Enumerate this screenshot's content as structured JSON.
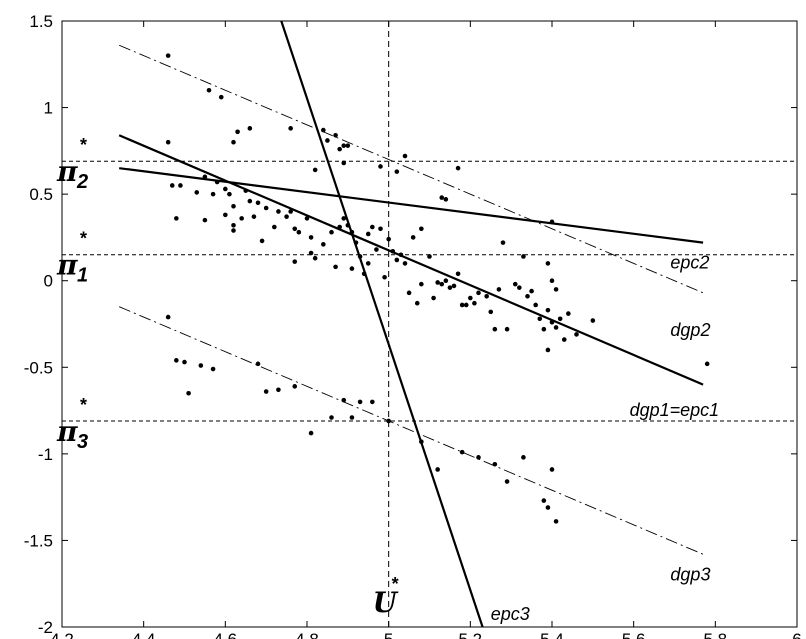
{
  "chart_data": {
    "type": "scatter",
    "title": "",
    "xlabel": "",
    "ylabel": "",
    "xlim": [
      4.2,
      6
    ],
    "ylim": [
      -2,
      1.5
    ],
    "xticks": [
      "4.2",
      "4.4",
      "4.6",
      "4.8",
      "5",
      "5.2",
      "5.4",
      "5.6",
      "5.8",
      "6"
    ],
    "yticks": [
      "1.5",
      "1",
      "0.5",
      "0",
      "-0.5",
      "-1",
      "-1.5",
      "-2"
    ],
    "grid": false,
    "reference_lines": {
      "horizontal": [
        {
          "y": 0.69,
          "symbol": "π",
          "subscript": "2",
          "superscript": "*"
        },
        {
          "y": 0.15,
          "symbol": "π",
          "subscript": "1",
          "superscript": "*"
        },
        {
          "y": -0.81,
          "symbol": "π",
          "subscript": "3",
          "superscript": "*"
        }
      ],
      "vertical": [
        {
          "x": 5.0,
          "symbol": "U",
          "superscript": "*"
        }
      ]
    },
    "lines": [
      {
        "name": "epc2",
        "style": "solid",
        "points": [
          [
            4.34,
            0.65
          ],
          [
            5.77,
            0.22
          ]
        ]
      },
      {
        "name": "dgp1=epc1",
        "style": "solid",
        "points": [
          [
            4.34,
            0.84
          ],
          [
            5.77,
            -0.6
          ]
        ]
      },
      {
        "name": "epc3",
        "style": "solid",
        "points": [
          [
            4.73,
            1.55
          ],
          [
            5.23,
            -2.0
          ]
        ]
      },
      {
        "name": "dgp2",
        "style": "dashdot",
        "points": [
          [
            4.34,
            1.36
          ],
          [
            5.77,
            -0.07
          ]
        ]
      },
      {
        "name": "dgp3",
        "style": "dashdot",
        "points": [
          [
            4.34,
            -0.15
          ],
          [
            5.77,
            -1.58
          ]
        ]
      }
    ],
    "line_labels": [
      {
        "text": "epc2",
        "x": 5.69,
        "y": 0.07
      },
      {
        "text": "dgp2",
        "x": 5.69,
        "y": -0.32
      },
      {
        "text": "dgp1=epc1",
        "x": 5.59,
        "y": -0.78
      },
      {
        "text": "dgp3",
        "x": 5.69,
        "y": -1.73
      },
      {
        "text": "epc3",
        "x": 5.25,
        "y": -1.96
      }
    ],
    "points": [
      [
        4.46,
        1.3
      ],
      [
        4.56,
        1.1
      ],
      [
        4.59,
        1.06
      ],
      [
        4.63,
        0.86
      ],
      [
        4.66,
        0.88
      ],
      [
        4.62,
        0.8
      ],
      [
        4.46,
        0.8
      ],
      [
        4.76,
        0.88
      ],
      [
        4.84,
        0.87
      ],
      [
        4.87,
        0.84
      ],
      [
        4.88,
        0.76
      ],
      [
        4.89,
        0.78
      ],
      [
        4.9,
        0.78
      ],
      [
        4.85,
        0.81
      ],
      [
        4.82,
        0.64
      ],
      [
        4.89,
        0.68
      ],
      [
        4.98,
        0.66
      ],
      [
        5.04,
        0.72
      ],
      [
        5.02,
        0.63
      ],
      [
        5.13,
        0.48
      ],
      [
        5.14,
        0.47
      ],
      [
        5.17,
        0.65
      ],
      [
        4.47,
        0.55
      ],
      [
        4.49,
        0.55
      ],
      [
        4.53,
        0.51
      ],
      [
        4.55,
        0.6
      ],
      [
        4.57,
        0.5
      ],
      [
        4.58,
        0.57
      ],
      [
        4.6,
        0.53
      ],
      [
        4.61,
        0.5
      ],
      [
        4.62,
        0.43
      ],
      [
        4.65,
        0.52
      ],
      [
        4.66,
        0.46
      ],
      [
        4.68,
        0.45
      ],
      [
        4.7,
        0.42
      ],
      [
        4.73,
        0.4
      ],
      [
        4.75,
        0.37
      ],
      [
        4.76,
        0.4
      ],
      [
        4.8,
        0.36
      ],
      [
        4.48,
        0.36
      ],
      [
        4.55,
        0.35
      ],
      [
        4.6,
        0.38
      ],
      [
        4.62,
        0.32
      ],
      [
        4.64,
        0.36
      ],
      [
        4.67,
        0.37
      ],
      [
        4.72,
        0.31
      ],
      [
        4.77,
        0.3
      ],
      [
        4.78,
        0.28
      ],
      [
        4.81,
        0.25
      ],
      [
        4.84,
        0.21
      ],
      [
        4.86,
        0.28
      ],
      [
        4.88,
        0.31
      ],
      [
        4.89,
        0.36
      ],
      [
        4.9,
        0.32
      ],
      [
        4.91,
        0.28
      ],
      [
        4.92,
        0.22
      ],
      [
        4.93,
        0.14
      ],
      [
        4.95,
        0.27
      ],
      [
        4.96,
        0.31
      ],
      [
        4.97,
        0.18
      ],
      [
        4.98,
        0.3
      ],
      [
        5.0,
        0.24
      ],
      [
        5.01,
        0.17
      ],
      [
        5.02,
        0.12
      ],
      [
        5.03,
        0.15
      ],
      [
        5.04,
        0.1
      ],
      [
        5.06,
        0.25
      ],
      [
        5.08,
        0.3
      ],
      [
        5.1,
        0.14
      ],
      [
        4.62,
        0.29
      ],
      [
        4.69,
        0.23
      ],
      [
        4.77,
        0.11
      ],
      [
        4.81,
        0.16
      ],
      [
        4.82,
        0.13
      ],
      [
        4.87,
        0.08
      ],
      [
        4.91,
        0.07
      ],
      [
        4.94,
        0.04
      ],
      [
        4.95,
        0.1
      ],
      [
        4.99,
        0.02
      ],
      [
        5.05,
        -0.07
      ],
      [
        5.07,
        -0.13
      ],
      [
        5.08,
        -0.02
      ],
      [
        5.11,
        -0.1
      ],
      [
        5.12,
        -0.01
      ],
      [
        5.13,
        -0.02
      ],
      [
        5.14,
        0.0
      ],
      [
        5.15,
        -0.04
      ],
      [
        5.16,
        -0.03
      ],
      [
        5.17,
        0.04
      ],
      [
        5.18,
        -0.14
      ],
      [
        5.19,
        -0.14
      ],
      [
        5.2,
        -0.1
      ],
      [
        5.21,
        -0.13
      ],
      [
        5.22,
        -0.07
      ],
      [
        5.24,
        -0.09
      ],
      [
        5.25,
        -0.18
      ],
      [
        5.26,
        -0.28
      ],
      [
        5.27,
        -0.05
      ],
      [
        5.28,
        0.22
      ],
      [
        5.29,
        -0.28
      ],
      [
        5.31,
        -0.02
      ],
      [
        5.32,
        -0.04
      ],
      [
        5.34,
        -0.09
      ],
      [
        5.35,
        -0.06
      ],
      [
        5.36,
        -0.14
      ],
      [
        5.37,
        -0.22
      ],
      [
        5.38,
        -0.28
      ],
      [
        5.39,
        -0.17
      ],
      [
        5.4,
        -0.24
      ],
      [
        5.41,
        -0.27
      ],
      [
        5.42,
        -0.22
      ],
      [
        5.43,
        -0.34
      ],
      [
        5.44,
        -0.19
      ],
      [
        5.46,
        -0.31
      ],
      [
        5.5,
        -0.23
      ],
      [
        5.33,
        0.14
      ],
      [
        5.4,
        0.34
      ],
      [
        5.39,
        0.1
      ],
      [
        5.4,
        0.0
      ],
      [
        5.41,
        -0.05
      ],
      [
        5.39,
        -0.4
      ],
      [
        5.78,
        -0.48
      ],
      [
        4.46,
        -0.21
      ],
      [
        4.48,
        -0.46
      ],
      [
        4.5,
        -0.47
      ],
      [
        4.51,
        -0.65
      ],
      [
        4.54,
        -0.49
      ],
      [
        4.57,
        -0.51
      ],
      [
        4.68,
        -0.48
      ],
      [
        4.7,
        -0.64
      ],
      [
        4.73,
        -0.63
      ],
      [
        4.77,
        -0.61
      ],
      [
        4.81,
        -0.88
      ],
      [
        4.86,
        -0.79
      ],
      [
        4.89,
        -0.69
      ],
      [
        4.91,
        -0.79
      ],
      [
        4.93,
        -0.7
      ],
      [
        4.96,
        -0.7
      ],
      [
        5.0,
        -0.81
      ],
      [
        5.08,
        -0.93
      ],
      [
        5.12,
        -1.09
      ],
      [
        5.18,
        -0.99
      ],
      [
        5.22,
        -1.02
      ],
      [
        5.26,
        -1.06
      ],
      [
        5.29,
        -1.16
      ],
      [
        5.33,
        -1.02
      ],
      [
        5.38,
        -1.27
      ],
      [
        5.39,
        -1.31
      ],
      [
        5.4,
        -1.09
      ],
      [
        5.41,
        -1.39
      ]
    ]
  }
}
